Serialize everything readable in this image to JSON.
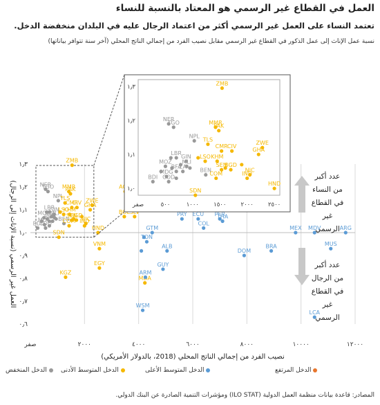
{
  "title": "العمل في القطاع غير الرسمي هو المعتاد بالنسبة للنساء",
  "subtitle": "تعتمد النساء على العمل غير الرسمي أكثر من اعتماد الرجال عليه في البلدان منخفضة الدخل.",
  "caption": "نسبة عمل الإناث إلى عمل الذكور في القطاع غير الرسمي مقابل نصيب الفرد من إجمالي الناتج المحلي (آخر سنة تتوافر بياناتها)",
  "annotation_up": "عدد أكبر من النساء في القطاع غير الرسمي",
  "annotation_down": "عدد أكبر من الرجال في القطاع غير الرسمي",
  "source": "المصادر: قاعدة بيانات منظمة العمل الدولية (ILO STAT) ومؤشرات التنمية الصادرة عن البنك الدولي.",
  "legend": [
    {
      "label": "الدخل المنخفض",
      "color": "#999999"
    },
    {
      "label": "الدخل المتوسط الأدنى",
      "color": "#f5b800"
    },
    {
      "label": "الدخل المتوسط الأعلى",
      "color": "#5b9bd5"
    },
    {
      "label": "الدخل المرتفع",
      "color": "#e8752c"
    }
  ],
  "chart_data": {
    "type": "scatter",
    "title": "",
    "xlabel": "نصيب الفرد من إجمالي الناتج المحلي (2018، بالدولار الأمريكي)",
    "ylabel": "العمل غير الرسمي (نسبة الإناث إلى الرجال)",
    "xlim": [
      0,
      12000
    ],
    "ylim": [
      0.6,
      1.3
    ],
    "x_ticks": [
      0,
      2000,
      4000,
      6000,
      8000,
      10000,
      12000
    ],
    "x_tick_labels": [
      "صفر",
      "٢٠٠٠",
      "٤٠٠٠",
      "٦٠٠٠",
      "٨٠٠٠",
      "١٠٠٠٠",
      "١٢٠٠٠"
    ],
    "y_ticks": [
      0.6,
      0.7,
      0.8,
      0.9,
      1.0,
      1.1,
      1.2,
      1.3
    ],
    "y_tick_labels": [
      "٠٫٦",
      "٠٫٧",
      "٠٫٨",
      "٠٫٩",
      "١٫٠",
      "١٫١",
      "١٫٢",
      "١٫٣"
    ],
    "reference_line": 1.0,
    "inset": {
      "xlim": [
        0,
        2600
      ],
      "ylim": [
        0.98,
        1.32
      ],
      "x_ticks": [
        0,
        500,
        1000,
        1500,
        2000,
        2500
      ],
      "x_tick_labels": [
        "صفر",
        "٥٠٠",
        "١٠٠٠",
        "١٥٠٠",
        "٢٠٠٠",
        "٢٥٠٠"
      ],
      "y_ticks": [
        1.0,
        1.1,
        1.2,
        1.3
      ],
      "y_tick_labels": [
        "١٫٠",
        "١٫١",
        "١٫٢",
        "١٫٣"
      ]
    },
    "series": [
      {
        "name": "الدخل المنخفض",
        "color": "#999999",
        "points": [
          {
            "label": "NER",
            "x": 560,
            "y": 1.19
          },
          {
            "label": "TGO",
            "x": 650,
            "y": 1.18
          },
          {
            "label": "NPL",
            "x": 1030,
            "y": 1.14
          },
          {
            "label": "LBR",
            "x": 700,
            "y": 1.09
          },
          {
            "label": "GIN",
            "x": 880,
            "y": 1.08
          },
          {
            "label": "MLI",
            "x": 890,
            "y": 1.065
          },
          {
            "label": "MOZ",
            "x": 500,
            "y": 1.065
          },
          {
            "label": "BFA",
            "x": 700,
            "y": 1.05
          },
          {
            "label": "ZA",
            "x": 820,
            "y": 1.05
          },
          {
            "label": "BEN",
            "x": 1240,
            "y": 1.04
          },
          {
            "label": "MDG",
            "x": 520,
            "y": 1.035
          },
          {
            "label": "BDI",
            "x": 270,
            "y": 1.02
          },
          {
            "label": "COD",
            "x": 560,
            "y": 1.02
          },
          {
            "label": "",
            "x": 600,
            "y": 1.09
          },
          {
            "label": "",
            "x": 780,
            "y": 1.07
          },
          {
            "label": "",
            "x": 950,
            "y": 1.06
          },
          {
            "label": "",
            "x": 700,
            "y": 1.03
          },
          {
            "label": "",
            "x": 420,
            "y": 1.05
          },
          {
            "label": "",
            "x": 620,
            "y": 1.06
          }
        ]
      },
      {
        "name": "الدخل المتوسط الأدنى",
        "color": "#f5b800",
        "points": [
          {
            "label": "ZMB",
            "x": 1540,
            "y": 1.295
          },
          {
            "label": "MMR",
            "x": 1420,
            "y": 1.18
          },
          {
            "label": "PAK",
            "x": 1480,
            "y": 1.17
          },
          {
            "label": "TLS",
            "x": 1280,
            "y": 1.13
          },
          {
            "label": "ZWE",
            "x": 2280,
            "y": 1.12
          },
          {
            "label": "CMR",
            "x": 1530,
            "y": 1.11
          },
          {
            "label": "CIV",
            "x": 1720,
            "y": 1.11
          },
          {
            "label": "GHA",
            "x": 2210,
            "y": 1.1
          },
          {
            "label": "KHM",
            "x": 1450,
            "y": 1.08
          },
          {
            "label": "SEN",
            "x": 1530,
            "y": 1.055
          },
          {
            "label": "BGD",
            "x": 1700,
            "y": 1.055
          },
          {
            "label": "NIC",
            "x": 2050,
            "y": 1.04
          },
          {
            "label": "COM",
            "x": 1430,
            "y": 1.03
          },
          {
            "label": "IND",
            "x": 2000,
            "y": 1.03
          },
          {
            "label": "AGO",
            "x": 3500,
            "y": 1.18
          },
          {
            "label": "BOL",
            "x": 3470,
            "y": 1.07
          },
          {
            "label": "SLV",
            "x": 3850,
            "y": 1.07
          },
          {
            "label": "SDN",
            "x": 1050,
            "y": 0.98
          },
          {
            "label": "VNM",
            "x": 2550,
            "y": 0.93
          },
          {
            "label": "HND",
            "x": 2500,
            "y": 1.0
          },
          {
            "label": "EGY",
            "x": 2550,
            "y": 0.845
          },
          {
            "label": "KGZ",
            "x": 1300,
            "y": 0.805
          },
          {
            "label": "MDA",
            "x": 4230,
            "y": 0.78
          },
          {
            "label": "LSO",
            "x": 1230,
            "y": 1.08
          },
          {
            "label": "",
            "x": 1600,
            "y": 1.06
          },
          {
            "label": "",
            "x": 1900,
            "y": 1.07
          },
          {
            "label": "",
            "x": 1100,
            "y": 1.09
          }
        ]
      },
      {
        "name": "الدخل المتوسط الأعلى",
        "color": "#5b9bd5",
        "points": [
          {
            "label": "GTM",
            "x": 4500,
            "y": 1.0
          },
          {
            "label": "PRY",
            "x": 5600,
            "y": 1.06
          },
          {
            "label": "ECU",
            "x": 6200,
            "y": 1.06
          },
          {
            "label": "COL",
            "x": 6400,
            "y": 1.02
          },
          {
            "label": "PER",
            "x": 7000,
            "y": 1.06
          },
          {
            "label": "THA",
            "x": 7100,
            "y": 1.05
          },
          {
            "label": "TON",
            "x": 4300,
            "y": 0.96
          },
          {
            "label": "ALB",
            "x": 5050,
            "y": 0.92
          },
          {
            "label": "ARM",
            "x": 4250,
            "y": 0.805
          },
          {
            "label": "GUY",
            "x": 4900,
            "y": 0.84
          },
          {
            "label": "WSM",
            "x": 4150,
            "y": 0.66
          },
          {
            "label": "MEX",
            "x": 9800,
            "y": 1.0
          },
          {
            "label": "MDV",
            "x": 10500,
            "y": 1.0
          },
          {
            "label": "ARG",
            "x": 11650,
            "y": 1.0
          },
          {
            "label": "DOM",
            "x": 7900,
            "y": 0.9
          },
          {
            "label": "BRA",
            "x": 8900,
            "y": 0.92
          },
          {
            "label": "MUS",
            "x": 11100,
            "y": 0.93
          },
          {
            "label": "LCA",
            "x": 10500,
            "y": 0.63
          },
          {
            "label": "",
            "x": 4200,
            "y": 0.98
          },
          {
            "label": "",
            "x": 4100,
            "y": 0.92
          }
        ]
      }
    ]
  }
}
